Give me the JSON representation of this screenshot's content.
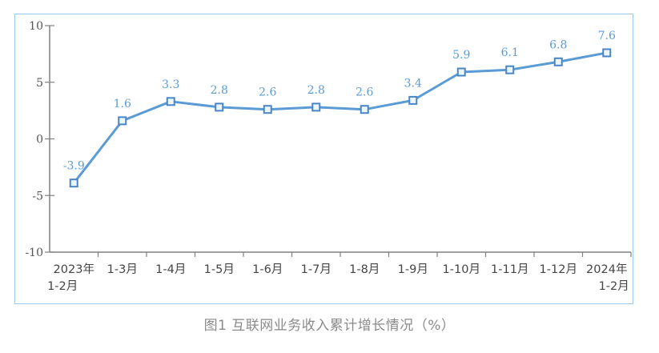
{
  "caption": "图1  互联网业务收入累计增长情况（%）",
  "colors": {
    "line": "#5b9bd5",
    "label": "#5b9bd5",
    "axis": "#808080",
    "frame": "#9cc9ee"
  },
  "chart_data": {
    "type": "line",
    "title": "图1  互联网业务收入累计增长情况（%）",
    "xlabel": "",
    "ylabel": "",
    "ylim": [
      -10,
      10
    ],
    "yticks": [
      10,
      5,
      0,
      -5,
      -10
    ],
    "grid": false,
    "legend": null,
    "categories": [
      "2023年\n1-2月",
      "1-3月",
      "1-4月",
      "1-5月",
      "1-6月",
      "1-7月",
      "1-8月",
      "1-9月",
      "1-10月",
      "1-11月",
      "1-12月",
      "2024年\n1-2月"
    ],
    "series": [
      {
        "name": "互联网业务收入累计增长",
        "values": [
          -3.9,
          1.6,
          3.3,
          2.8,
          2.6,
          2.8,
          2.6,
          3.4,
          5.9,
          6.1,
          6.8,
          7.6
        ]
      }
    ],
    "data_labels": [
      "-3.9",
      "1.6",
      "3.3",
      "2.8",
      "2.6",
      "2.8",
      "2.6",
      "3.4",
      "5.9",
      "6.1",
      "6.8",
      "7.6"
    ]
  }
}
